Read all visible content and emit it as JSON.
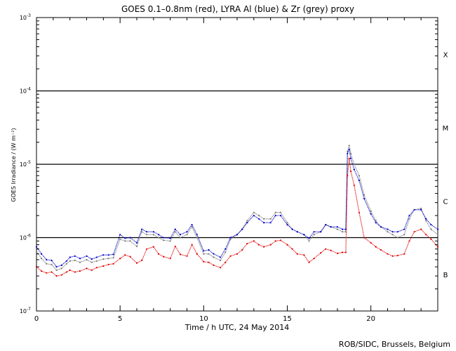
{
  "chart_data": {
    "type": "line",
    "title": "GOES 0.1–0.8nm (red), LYRA Al (blue) & Zr (grey) proxy",
    "xlabel": "Time / h UTC, 24 May 2014",
    "ylabel": "GOES Irradiance / (W m⁻²)",
    "credit": "ROB/SIDC, Brussels, Belgium",
    "xlim": [
      0,
      24
    ],
    "ylim": [
      1e-07,
      0.001
    ],
    "yscale": "log",
    "x_ticks": [
      0,
      5,
      10,
      15,
      20
    ],
    "x_tick_labels": [
      "0",
      "5",
      "10",
      "15",
      "20"
    ],
    "y_ticks": [
      {
        "base": "10",
        "exp": "-3"
      },
      {
        "base": "10",
        "exp": "-4"
      },
      {
        "base": "10",
        "exp": "-5"
      },
      {
        "base": "10",
        "exp": "-6"
      },
      {
        "base": "10",
        "exp": "-7"
      }
    ],
    "y_tick_values": [
      0.001,
      0.0001,
      1e-05,
      1e-06,
      1e-07
    ],
    "class_lines": [
      0.0001,
      1e-05,
      1e-06
    ],
    "class_labels": [
      {
        "label": "X",
        "logy": -3.5
      },
      {
        "label": "M",
        "logy": -4.5
      },
      {
        "label": "C",
        "logy": -5.5
      },
      {
        "label": "B",
        "logy": -6.5
      }
    ],
    "grid": false,
    "series": [
      {
        "name": "GOES 0.1–0.8nm",
        "color": "#e00000",
        "x": [
          0,
          0.3,
          0.6,
          0.9,
          1.2,
          1.5,
          1.8,
          2.0,
          2.3,
          2.6,
          3.0,
          3.3,
          3.6,
          4.0,
          4.3,
          4.6,
          5.0,
          5.3,
          5.6,
          6.0,
          6.3,
          6.6,
          7.0,
          7.3,
          7.6,
          8.0,
          8.3,
          8.6,
          9.0,
          9.3,
          9.6,
          10.0,
          10.3,
          10.6,
          11.0,
          11.3,
          11.6,
          12.0,
          12.3,
          12.6,
          13.0,
          13.3,
          13.6,
          14.0,
          14.3,
          14.6,
          15.0,
          15.3,
          15.6,
          16.0,
          16.3,
          16.6,
          17.0,
          17.3,
          17.6,
          18.0,
          18.3,
          18.5,
          18.6,
          18.7,
          18.8,
          19.0,
          19.3,
          19.6,
          20.0,
          20.3,
          20.6,
          21.0,
          21.3,
          21.6,
          22.0,
          22.3,
          22.6,
          23.0,
          23.3,
          23.6,
          24.0
        ],
        "y": [
          4e-07,
          3.5e-07,
          3.3e-07,
          3.4e-07,
          3e-07,
          3.1e-07,
          3.4e-07,
          3.6e-07,
          3.4e-07,
          3.5e-07,
          3.8e-07,
          3.6e-07,
          3.9e-07,
          4.1e-07,
          4.3e-07,
          4.4e-07,
          5.2e-07,
          5.8e-07,
          5.5e-07,
          4.5e-07,
          4.9e-07,
          7e-07,
          7.5e-07,
          6e-07,
          5.5e-07,
          5.2e-07,
          7.6e-07,
          5.9e-07,
          5.6e-07,
          8e-07,
          6e-07,
          4.7e-07,
          4.6e-07,
          4.2e-07,
          3.9e-07,
          4.6e-07,
          5.6e-07,
          6e-07,
          6.8e-07,
          8.3e-07,
          9e-07,
          8e-07,
          7.5e-07,
          8e-07,
          9e-07,
          9.2e-07,
          8e-07,
          7e-07,
          6e-07,
          5.8e-07,
          4.6e-07,
          5.2e-07,
          6.2e-07,
          7e-07,
          6.7e-07,
          6.1e-07,
          6.3e-07,
          6.3e-07,
          7e-06,
          1.2e-05,
          8e-06,
          5.2e-06,
          2.2e-06,
          1e-06,
          8.5e-07,
          7.5e-07,
          6.8e-07,
          6e-07,
          5.6e-07,
          5.7e-07,
          6e-07,
          9e-07,
          1.2e-06,
          1.3e-06,
          1.1e-06,
          9.5e-07,
          7.5e-07
        ]
      },
      {
        "name": "LYRA Al",
        "color": "#0000c8",
        "x": [
          0,
          0.3,
          0.6,
          0.9,
          1.2,
          1.5,
          1.8,
          2.0,
          2.3,
          2.6,
          3.0,
          3.3,
          3.6,
          4.0,
          4.3,
          4.6,
          5.0,
          5.3,
          5.6,
          6.0,
          6.3,
          6.6,
          7.0,
          7.3,
          7.6,
          8.0,
          8.3,
          8.6,
          9.0,
          9.3,
          9.6,
          10.0,
          10.3,
          10.6,
          11.0,
          11.3,
          11.6,
          12.0,
          12.3,
          12.6,
          13.0,
          13.3,
          13.6,
          14.0,
          14.3,
          14.6,
          15.0,
          15.3,
          15.6,
          16.0,
          16.3,
          16.6,
          17.0,
          17.3,
          17.6,
          18.0,
          18.3,
          18.5,
          18.6,
          18.7,
          18.8,
          19.0,
          19.3,
          19.6,
          20.0,
          20.3,
          20.6,
          21.0,
          21.3,
          21.6,
          22.0,
          22.3,
          22.6,
          23.0,
          23.3,
          23.6,
          24.0
        ],
        "y": [
          7.5e-07,
          6e-07,
          5e-07,
          4.9e-07,
          4e-07,
          4.2e-07,
          4.8e-07,
          5.4e-07,
          5.6e-07,
          5.2e-07,
          5.6e-07,
          5.1e-07,
          5.4e-07,
          5.8e-07,
          5.8e-07,
          5.9e-07,
          1.1e-06,
          9.8e-07,
          1e-06,
          8.5e-07,
          1.3e-06,
          1.2e-06,
          1.2e-06,
          1.1e-06,
          1e-06,
          9.8e-07,
          1.3e-06,
          1.1e-06,
          1.2e-06,
          1.5e-06,
          1.1e-06,
          6.6e-07,
          6.8e-07,
          6e-07,
          5.4e-07,
          7e-07,
          1e-06,
          1.1e-06,
          1.3e-06,
          1.6e-06,
          2e-06,
          1.8e-06,
          1.6e-06,
          1.6e-06,
          2e-06,
          2e-06,
          1.5e-06,
          1.3e-06,
          1.2e-06,
          1.1e-06,
          9.8e-07,
          1.2e-06,
          1.2e-06,
          1.5e-06,
          1.4e-06,
          1.4e-06,
          1.3e-06,
          1.3e-06,
          1.4e-05,
          1.6e-05,
          1.2e-05,
          8.5e-06,
          6e-06,
          3.4e-06,
          2.1e-06,
          1.6e-06,
          1.4e-06,
          1.3e-06,
          1.2e-06,
          1.2e-06,
          1.3e-06,
          2e-06,
          2.4e-06,
          2.4e-06,
          1.8e-06,
          1.5e-06,
          1.3e-06
        ]
      },
      {
        "name": "LYRA Zr",
        "color": "#7a7a7a",
        "x": [
          0,
          0.3,
          0.6,
          0.9,
          1.2,
          1.5,
          1.8,
          2.0,
          2.3,
          2.6,
          3.0,
          3.3,
          3.6,
          4.0,
          4.3,
          4.6,
          5.0,
          5.3,
          5.6,
          6.0,
          6.3,
          6.6,
          7.0,
          7.3,
          7.6,
          8.0,
          8.3,
          8.6,
          9.0,
          9.3,
          9.6,
          10.0,
          10.3,
          10.6,
          11.0,
          11.3,
          11.6,
          12.0,
          12.3,
          12.6,
          13.0,
          13.3,
          13.6,
          14.0,
          14.3,
          14.6,
          15.0,
          15.3,
          15.6,
          16.0,
          16.3,
          16.6,
          17.0,
          17.3,
          17.6,
          18.0,
          18.3,
          18.5,
          18.6,
          18.7,
          18.8,
          19.0,
          19.3,
          19.6,
          20.0,
          20.3,
          20.6,
          21.0,
          21.3,
          21.6,
          22.0,
          22.3,
          22.6,
          23.0,
          23.3,
          23.6,
          24.0
        ],
        "y": [
          6.5e-07,
          5.2e-07,
          4.4e-07,
          4.3e-07,
          3.6e-07,
          3.8e-07,
          4.4e-07,
          4.8e-07,
          4.9e-07,
          4.6e-07,
          5e-07,
          4.6e-07,
          4.8e-07,
          5.1e-07,
          5.2e-07,
          5.3e-07,
          9.5e-07,
          9e-07,
          9e-07,
          7.6e-07,
          1.2e-06,
          1.1e-06,
          1.1e-06,
          1e-06,
          9.2e-07,
          9e-07,
          1.2e-06,
          1e-06,
          1.1e-06,
          1.4e-06,
          1e-06,
          6e-07,
          6e-07,
          5.4e-07,
          4.9e-07,
          6.3e-07,
          9.5e-07,
          1.1e-06,
          1.3e-06,
          1.7e-06,
          2.2e-06,
          2e-06,
          1.8e-06,
          1.8e-06,
          2.2e-06,
          2.2e-06,
          1.6e-06,
          1.3e-06,
          1.2e-06,
          1.1e-06,
          9e-07,
          1.1e-06,
          1.2e-06,
          1.5e-06,
          1.4e-06,
          1.3e-06,
          1.2e-06,
          1.2e-06,
          1.5e-05,
          1.8e-05,
          1.4e-05,
          1e-05,
          7e-06,
          3.8e-06,
          2.3e-06,
          1.7e-06,
          1.4e-06,
          1.2e-06,
          1.1e-06,
          1e-06,
          1.1e-06,
          1.8e-06,
          2.4e-06,
          2.5e-06,
          1.7e-06,
          1.3e-06,
          1.1e-06
        ]
      }
    ]
  }
}
